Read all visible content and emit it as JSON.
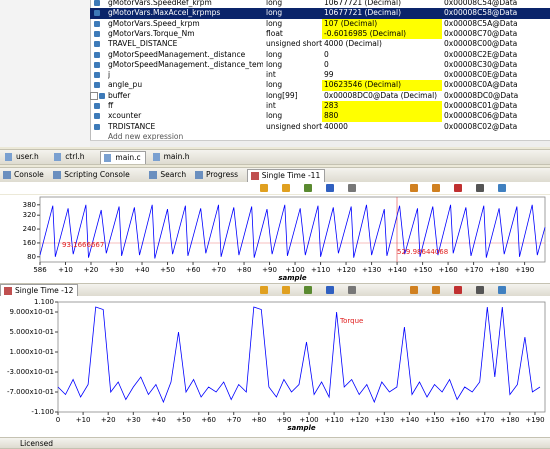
{
  "expressions": {
    "selected_row": 1,
    "rows": [
      {
        "name": "gMotorVars.SpeedRef_krpm",
        "type": "long",
        "value": "10677721 (Decimal)",
        "address": "0x00008C54@Data",
        "changed": false
      },
      {
        "name": "gMotorVars.MaxAccel_krpmps",
        "type": "long",
        "value": "10677721 (Decimal)",
        "address": "0x00008C58@Data",
        "changed": false
      },
      {
        "name": "gMotorVars.Speed_krpm",
        "type": "long",
        "value": "107 (Decimal)",
        "address": "0x00008C5A@Data",
        "changed": true
      },
      {
        "name": "gMotorVars.Torque_Nm",
        "type": "float",
        "value": "-0.6016985 (Decimal)",
        "address": "0x00008C70@Data",
        "changed": true
      },
      {
        "name": "TRAVEL_DISTANCE",
        "type": "unsigned short",
        "value": "4000 (Decimal)",
        "address": "0x00008C00@Data",
        "changed": false
      },
      {
        "name": "gMotorSpeedManagement._distance",
        "type": "long",
        "value": "0",
        "address": "0x00008C2E@Data",
        "changed": false
      },
      {
        "name": "gMotorSpeedManagement._distance_temp",
        "type": "long",
        "value": "0",
        "address": "0x00008C30@Data",
        "changed": false
      },
      {
        "name": "j",
        "type": "int",
        "value": "99",
        "address": "0x00008C0E@Data",
        "changed": false
      },
      {
        "name": "angle_pu",
        "type": "long",
        "value": "10623546 (Decimal)",
        "address": "0x00008C0A@Data",
        "changed": true
      },
      {
        "name": "buffer",
        "type": "long[99]",
        "value": "0x00008DC0@Data (Decimal)",
        "address": "0x00008DC0@Data",
        "changed": false
      },
      {
        "name": "ff",
        "type": "int",
        "value": "283",
        "address": "0x00008C01@Data",
        "changed": true
      },
      {
        "name": "xcounter",
        "type": "long",
        "value": "880",
        "address": "0x00008C06@Data",
        "changed": true
      },
      {
        "name": "TRDISTANCE",
        "type": "unsigned short",
        "value": "40000",
        "address": "0x00008C02@Data",
        "changed": false
      }
    ],
    "add": "Add new expression"
  },
  "editor_tabs": [
    "user.h",
    "ctrl.h",
    "main.c",
    "main.h"
  ],
  "active_editor_tab": 2,
  "view_tabs": [
    "Console",
    "Scripting Console",
    "Search",
    "Progress"
  ],
  "status": "Licensed",
  "chart_data": [
    {
      "type": "line",
      "title": "Single Time -11",
      "xlabel": "sample",
      "color": "#0000ff",
      "annotations": [
        "93.1666667",
        "529.98644068"
      ],
      "x": [
        0,
        5,
        6,
        11,
        13,
        18,
        19,
        24,
        26,
        31,
        32,
        37,
        39,
        44,
        45,
        50,
        52,
        57,
        58,
        63,
        65,
        70,
        71,
        76,
        78,
        83,
        84,
        89,
        91,
        96,
        97,
        102,
        104,
        109,
        110,
        115,
        117,
        122,
        123,
        128,
        130,
        135,
        136,
        141,
        143,
        148,
        149,
        154,
        156,
        161,
        162,
        167,
        169,
        174,
        175,
        180,
        182,
        187,
        188,
        193,
        195,
        198
      ],
      "values": [
        90,
        375,
        80,
        360,
        95,
        380,
        75,
        350,
        100,
        370,
        85,
        365,
        90,
        380,
        70,
        355,
        95,
        375,
        85,
        360,
        100,
        380,
        80,
        365,
        90,
        370,
        75,
        355,
        95,
        380,
        85,
        360,
        90,
        375,
        80,
        365,
        100,
        370,
        75,
        380,
        90,
        355,
        85,
        375,
        95,
        360,
        80,
        370,
        90,
        380,
        100,
        365,
        85,
        375,
        75,
        360,
        95,
        370,
        80,
        380,
        90,
        250
      ],
      "xlim": [
        0,
        198
      ],
      "ylim": [
        50,
        425
      ],
      "yticks": [
        80,
        160,
        240,
        320,
        380
      ],
      "xticks": [
        {
          "value": 0,
          "label": "586"
        },
        {
          "value": 10,
          "label": "+10"
        },
        {
          "value": 20,
          "label": "+20"
        },
        {
          "value": 30,
          "label": "+30"
        },
        {
          "value": 40,
          "label": "+40"
        },
        {
          "value": 50,
          "label": "+50"
        },
        {
          "value": 60,
          "label": "+60"
        },
        {
          "value": 70,
          "label": "+70"
        },
        {
          "value": 80,
          "label": "+80"
        },
        {
          "value": 90,
          "label": "+90"
        },
        {
          "value": 100,
          "label": "+100"
        },
        {
          "value": 110,
          "label": "+110"
        },
        {
          "value": 120,
          "label": "+120"
        },
        {
          "value": 130,
          "label": "+130"
        },
        {
          "value": 140,
          "label": "+140"
        },
        {
          "value": 150,
          "label": "+150"
        },
        {
          "value": 160,
          "label": "+160"
        },
        {
          "value": 170,
          "label": "+170"
        },
        {
          "value": 180,
          "label": "+180"
        },
        {
          "value": 190,
          "label": "+190"
        }
      ]
    },
    {
      "type": "line",
      "title": "Single Time -12",
      "xlabel": "sample",
      "color": "#0000ff",
      "annotations": [
        "Torque"
      ],
      "x": [
        0,
        3,
        6,
        9,
        12,
        15,
        18,
        21,
        24,
        27,
        30,
        33,
        36,
        39,
        42,
        45,
        48,
        51,
        54,
        57,
        60,
        63,
        66,
        69,
        72,
        75,
        78,
        81,
        84,
        87,
        90,
        93,
        96,
        99,
        102,
        105,
        108,
        111,
        114,
        117,
        120,
        123,
        126,
        129,
        132,
        135,
        138,
        141,
        144,
        147,
        150,
        153,
        156,
        159,
        162,
        165,
        168,
        171,
        174,
        177,
        180,
        183,
        186,
        189,
        192
      ],
      "values": [
        -0.6,
        -0.75,
        -0.45,
        -0.8,
        -0.55,
        1.0,
        0.95,
        -0.7,
        -0.5,
        -0.85,
        -0.6,
        -0.4,
        -0.75,
        -0.55,
        -0.9,
        -0.5,
        0.5,
        -0.7,
        -0.45,
        -0.8,
        -0.6,
        -0.7,
        -0.5,
        -0.85,
        -0.55,
        -0.7,
        1.0,
        0.95,
        -0.6,
        -0.8,
        -0.45,
        -0.7,
        -0.55,
        0.3,
        -0.75,
        -0.5,
        -0.8,
        0.9,
        -0.6,
        -0.45,
        -0.75,
        -0.55,
        -0.9,
        -0.5,
        -0.7,
        -0.6,
        0.6,
        -0.75,
        -0.5,
        -0.8,
        -0.55,
        -0.7,
        -0.45,
        -0.85,
        -0.6,
        -0.7,
        -0.5,
        1.0,
        -0.4,
        1.0,
        -0.75,
        -0.55,
        0.4,
        -0.7,
        -0.6
      ],
      "xlim": [
        0,
        194
      ],
      "ylim": [
        -1.1,
        1.1
      ],
      "yticks": [
        {
          "value": 1.1,
          "label": "1.100"
        },
        {
          "value": 0.9,
          "label": "9.000x10-01"
        },
        {
          "value": 0.5,
          "label": "5.000x10-01"
        },
        {
          "value": 0.1,
          "label": "1.000x10-01"
        },
        {
          "value": -0.3,
          "label": "-3.000x10-01"
        },
        {
          "value": -0.7,
          "label": "-7.000x10-01"
        },
        {
          "value": -1.1,
          "label": "-1.100"
        }
      ],
      "xticks": [
        0,
        {
          "value": 10,
          "label": "+10"
        },
        {
          "value": 20,
          "label": "+20"
        },
        {
          "value": 30,
          "label": "+30"
        },
        {
          "value": 40,
          "label": "+40"
        },
        {
          "value": 50,
          "label": "+50"
        },
        {
          "value": 60,
          "label": "+60"
        },
        {
          "value": 70,
          "label": "+70"
        },
        {
          "value": 80,
          "label": "+80"
        },
        {
          "value": 90,
          "label": "+90"
        },
        {
          "value": 100,
          "label": "+100"
        },
        {
          "value": 110,
          "label": "+110"
        },
        {
          "value": 120,
          "label": "+120"
        },
        {
          "value": 130,
          "label": "+130"
        },
        {
          "value": 140,
          "label": "+140"
        },
        {
          "value": 150,
          "label": "+150"
        },
        {
          "value": 160,
          "label": "+160"
        },
        {
          "value": 170,
          "label": "+170"
        },
        {
          "value": 180,
          "label": "+180"
        },
        {
          "value": 190,
          "label": "+190"
        }
      ]
    }
  ]
}
